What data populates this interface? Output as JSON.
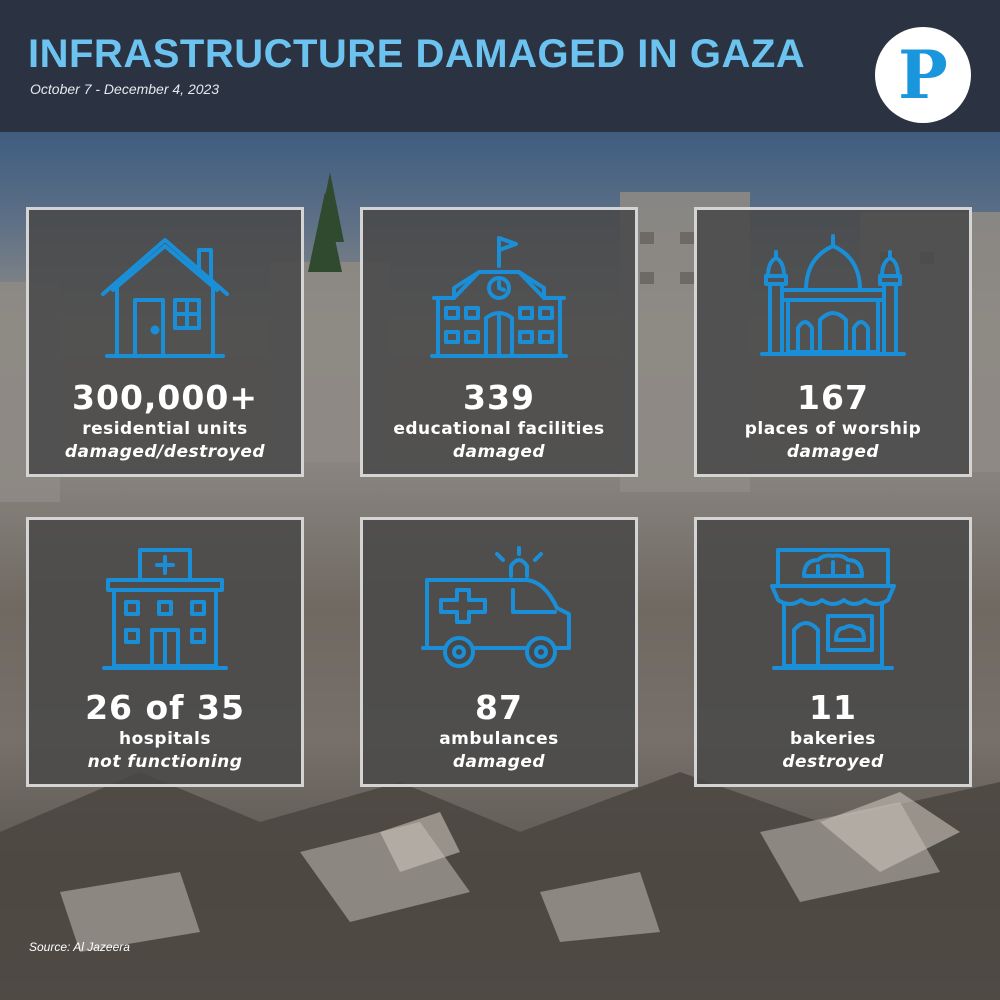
{
  "header": {
    "title": "INFRASTRUCTURE DAMAGED IN GAZA",
    "subtitle": "October 7 - December 4, 2023",
    "logo_letter": "P"
  },
  "colors": {
    "header_bg": "#2b3342",
    "title": "#6cc3ef",
    "icon": "#1a8fd8",
    "logo": "#1a97dc"
  },
  "cards": [
    {
      "icon": "house-icon",
      "value": "300,000+",
      "label": "residential units",
      "status": "damaged/destroyed"
    },
    {
      "icon": "school-icon",
      "value": "339",
      "label": "educational facilities",
      "status": "damaged"
    },
    {
      "icon": "mosque-icon",
      "value": "167",
      "label": "places of worship",
      "status": "damaged"
    },
    {
      "icon": "hospital-icon",
      "value": "26 of 35",
      "label": "hospitals",
      "status": "not functioning"
    },
    {
      "icon": "ambulance-icon",
      "value": "87",
      "label": "ambulances",
      "status": "damaged"
    },
    {
      "icon": "bakery-icon",
      "value": "11",
      "label": "bakeries",
      "status": "destroyed"
    }
  ],
  "source": "Source: Al Jazeera"
}
